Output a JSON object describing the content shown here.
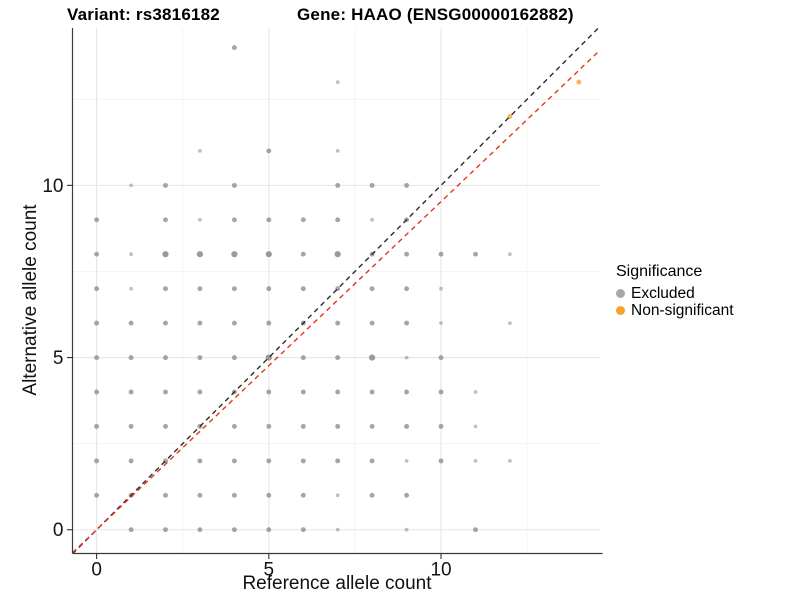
{
  "header": {
    "variant_title": "Variant: rs3816182",
    "gene_title": "Gene: HAAO (ENSG00000162882)"
  },
  "chart_data": {
    "type": "scatter",
    "xlabel": "Reference allele count",
    "ylabel": "Alternative allele count",
    "xlim": [
      -0.7,
      14.63
    ],
    "ylim": [
      -0.69,
      14.57
    ],
    "x_ticks": [
      0,
      5,
      10
    ],
    "y_ticks": [
      0,
      5,
      10
    ],
    "minor_gridlines_x": [
      2.5,
      7.5,
      12.5
    ],
    "minor_gridlines_y": [
      2.5,
      7.5,
      12.5
    ],
    "grid": "on",
    "legend": {
      "title": "Significance",
      "position": "right",
      "entries": [
        {
          "label": "Excluded",
          "color": "#A8A8A8"
        },
        {
          "label": "Non-significant",
          "color": "#F9A12E"
        }
      ]
    },
    "series": [
      {
        "name": "Excluded",
        "color": "#8C8C8C",
        "points": [
          [
            1,
            0,
            2
          ],
          [
            2,
            0,
            2
          ],
          [
            3,
            0,
            2
          ],
          [
            4,
            0,
            2
          ],
          [
            5,
            0,
            2
          ],
          [
            6,
            0,
            2
          ],
          [
            7,
            0,
            1
          ],
          [
            9,
            0,
            1
          ],
          [
            11,
            0,
            2
          ],
          [
            0,
            1,
            2
          ],
          [
            1,
            1,
            2
          ],
          [
            2,
            1,
            2
          ],
          [
            3,
            1,
            2
          ],
          [
            4,
            1,
            2
          ],
          [
            5,
            1,
            2
          ],
          [
            6,
            1,
            2
          ],
          [
            7,
            1,
            1
          ],
          [
            8,
            1,
            2
          ],
          [
            9,
            1,
            2
          ],
          [
            0,
            2,
            2
          ],
          [
            1,
            2,
            2
          ],
          [
            2,
            2,
            2
          ],
          [
            3,
            2,
            2
          ],
          [
            4,
            2,
            2
          ],
          [
            5,
            2,
            2
          ],
          [
            6,
            2,
            2
          ],
          [
            7,
            2,
            2
          ],
          [
            8,
            2,
            2
          ],
          [
            9,
            2,
            1
          ],
          [
            10,
            2,
            2
          ],
          [
            11,
            2,
            1
          ],
          [
            12,
            2,
            1
          ],
          [
            0,
            3,
            2
          ],
          [
            1,
            3,
            2
          ],
          [
            2,
            3,
            2
          ],
          [
            3,
            3,
            2
          ],
          [
            4,
            3,
            2
          ],
          [
            5,
            3,
            2
          ],
          [
            6,
            3,
            2
          ],
          [
            7,
            3,
            2
          ],
          [
            8,
            3,
            2
          ],
          [
            9,
            3,
            2
          ],
          [
            10,
            3,
            2
          ],
          [
            11,
            3,
            1
          ],
          [
            0,
            4,
            2
          ],
          [
            1,
            4,
            2
          ],
          [
            2,
            4,
            2
          ],
          [
            3,
            4,
            2
          ],
          [
            4,
            4,
            2
          ],
          [
            5,
            4,
            2
          ],
          [
            6,
            4,
            2
          ],
          [
            7,
            4,
            2
          ],
          [
            8,
            4,
            2
          ],
          [
            9,
            4,
            2
          ],
          [
            10,
            4,
            2
          ],
          [
            11,
            4,
            1
          ],
          [
            0,
            5,
            2
          ],
          [
            1,
            5,
            2
          ],
          [
            2,
            5,
            2
          ],
          [
            3,
            5,
            2
          ],
          [
            4,
            5,
            2
          ],
          [
            5,
            5,
            3
          ],
          [
            6,
            5,
            2
          ],
          [
            7,
            5,
            2
          ],
          [
            8,
            5,
            3
          ],
          [
            9,
            5,
            1
          ],
          [
            10,
            5,
            2
          ],
          [
            0,
            6,
            2
          ],
          [
            1,
            6,
            2
          ],
          [
            2,
            6,
            2
          ],
          [
            3,
            6,
            2
          ],
          [
            4,
            6,
            2
          ],
          [
            5,
            6,
            2
          ],
          [
            6,
            6,
            2
          ],
          [
            7,
            6,
            2
          ],
          [
            8,
            6,
            2
          ],
          [
            9,
            6,
            2
          ],
          [
            10,
            6,
            1
          ],
          [
            12,
            6,
            1
          ],
          [
            0,
            7,
            2
          ],
          [
            1,
            7,
            1
          ],
          [
            2,
            7,
            2
          ],
          [
            3,
            7,
            2
          ],
          [
            4,
            7,
            2
          ],
          [
            5,
            7,
            2
          ],
          [
            6,
            7,
            2
          ],
          [
            7,
            7,
            2
          ],
          [
            8,
            7,
            2
          ],
          [
            9,
            7,
            2
          ],
          [
            10,
            7,
            1
          ],
          [
            0,
            8,
            2
          ],
          [
            1,
            8,
            1
          ],
          [
            2,
            8,
            3
          ],
          [
            3,
            8,
            3
          ],
          [
            4,
            8,
            3
          ],
          [
            5,
            8,
            3
          ],
          [
            6,
            8,
            2
          ],
          [
            7,
            8,
            3
          ],
          [
            8,
            8,
            2
          ],
          [
            9,
            8,
            2
          ],
          [
            10,
            8,
            2
          ],
          [
            11,
            8,
            2
          ],
          [
            12,
            8,
            1
          ],
          [
            0,
            9,
            2
          ],
          [
            2,
            9,
            2
          ],
          [
            3,
            9,
            1
          ],
          [
            4,
            9,
            2
          ],
          [
            5,
            9,
            2
          ],
          [
            6,
            9,
            2
          ],
          [
            7,
            9,
            2
          ],
          [
            8,
            9,
            1
          ],
          [
            9,
            9,
            2
          ],
          [
            1,
            10,
            1
          ],
          [
            2,
            10,
            2
          ],
          [
            4,
            10,
            2
          ],
          [
            7,
            10,
            2
          ],
          [
            8,
            10,
            2
          ],
          [
            9,
            10,
            2
          ],
          [
            3,
            11,
            1
          ],
          [
            5,
            11,
            2
          ],
          [
            7,
            11,
            1
          ],
          [
            7,
            13,
            1
          ],
          [
            4,
            14,
            2
          ]
        ]
      },
      {
        "name": "Non-significant",
        "color": "#F9A12E",
        "points": [
          [
            12,
            12,
            2
          ],
          [
            14,
            13,
            2
          ]
        ]
      }
    ],
    "reference_lines": [
      {
        "name": "identity",
        "style": "dashed",
        "color": "#2B2B2B",
        "x1": -0.7,
        "y1": -0.7,
        "x2": 14.57,
        "y2": 14.57
      },
      {
        "name": "fit",
        "style": "dashed",
        "color": "#E8351F",
        "x1": -0.7,
        "y1": -0.667,
        "x2": 14.63,
        "y2": 13.94
      }
    ]
  }
}
